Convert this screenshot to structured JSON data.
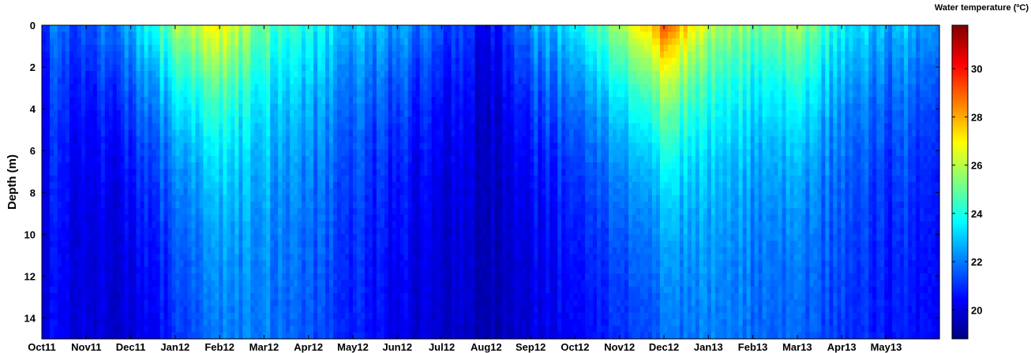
{
  "chart_data": {
    "type": "heatmap",
    "ylabel": "Depth (m)",
    "colorbar_label": "Water temperature (ºC)",
    "colormap": "jet",
    "x_ticks": [
      "Oct11",
      "Nov11",
      "Dec11",
      "Jan12",
      "Feb12",
      "Mar12",
      "Apr12",
      "May12",
      "Jun12",
      "Jul12",
      "Aug12",
      "Sep12",
      "Oct12",
      "Nov12",
      "Dec12",
      "Jan13",
      "Feb13",
      "Mar13",
      "Apr13",
      "May13"
    ],
    "xlim_months": [
      0,
      20.2
    ],
    "y_ticks": [
      0,
      2,
      4,
      6,
      8,
      10,
      12,
      14
    ],
    "ylim": [
      0,
      15
    ],
    "y_reversed": true,
    "colorbar_ticks": [
      20,
      22,
      24,
      26,
      28,
      30
    ],
    "clim": [
      18.8,
      31.8
    ],
    "surface_temperature_by_month": [
      {
        "month": "Oct11",
        "surface": 21.5,
        "bottom": 20.2
      },
      {
        "month": "Nov11",
        "surface": 21.8,
        "bottom": 20.0
      },
      {
        "month": "Dec11",
        "surface": 22.5,
        "bottom": 19.6
      },
      {
        "month": "Jan12",
        "surface": 25.5,
        "bottom": 20.6
      },
      {
        "month": "Feb12",
        "surface": 27.0,
        "bottom": 21.6
      },
      {
        "month": "Mar12",
        "surface": 25.0,
        "bottom": 21.8
      },
      {
        "month": "Apr12",
        "surface": 23.8,
        "bottom": 21.2
      },
      {
        "month": "May12",
        "surface": 22.8,
        "bottom": 20.6
      },
      {
        "month": "Jun12",
        "surface": 22.5,
        "bottom": 20.0
      },
      {
        "month": "Jul12",
        "surface": 21.6,
        "bottom": 19.7
      },
      {
        "month": "Aug12",
        "surface": 20.2,
        "bottom": 19.3
      },
      {
        "month": "Sep12",
        "surface": 22.4,
        "bottom": 19.8
      },
      {
        "month": "Oct12",
        "surface": 23.8,
        "bottom": 20.3
      },
      {
        "month": "Nov12",
        "surface": 25.8,
        "bottom": 20.6
      },
      {
        "month": "Dec12",
        "surface": 29.0,
        "bottom": 21.2
      },
      {
        "month": "Jan13",
        "surface": 26.2,
        "bottom": 21.8
      },
      {
        "month": "Feb13",
        "surface": 25.2,
        "bottom": 21.5
      },
      {
        "month": "Mar13",
        "surface": 25.6,
        "bottom": 21.3
      },
      {
        "month": "Apr13",
        "surface": 23.6,
        "bottom": 20.9
      },
      {
        "month": "May13",
        "surface": 22.8,
        "bottom": 20.5
      }
    ]
  }
}
